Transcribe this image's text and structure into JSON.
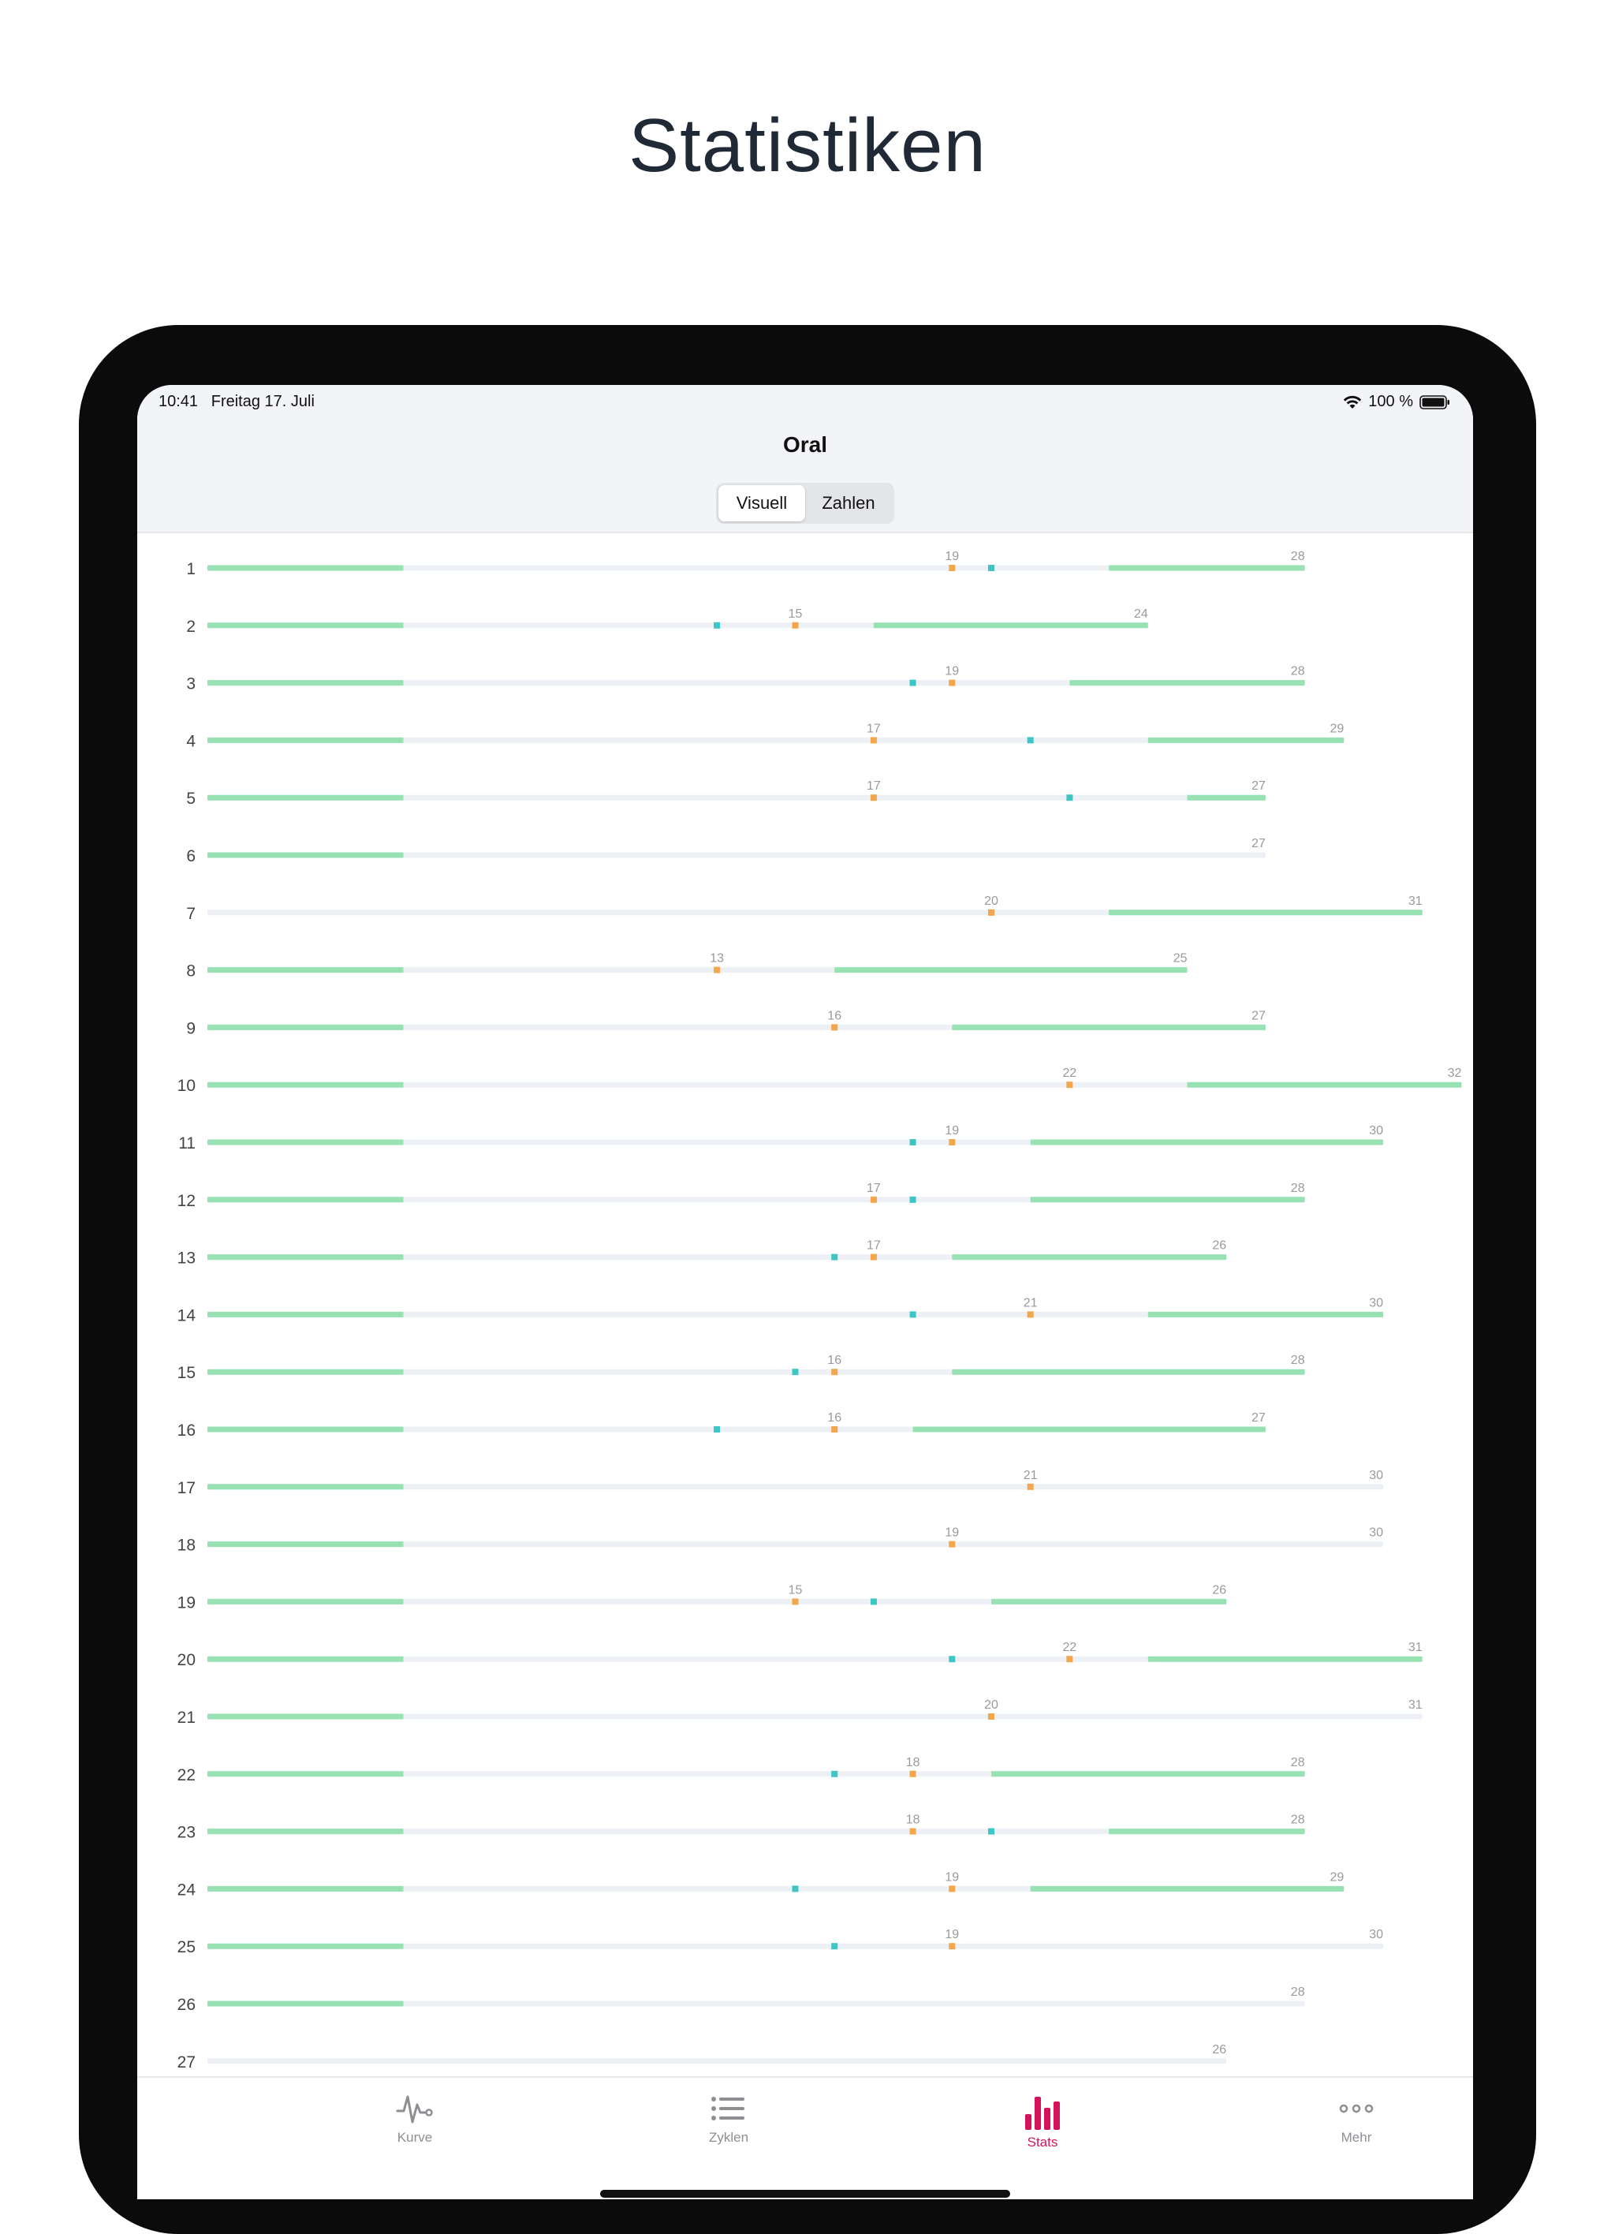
{
  "headline": "Statistiken",
  "status_bar": {
    "time": "10:41",
    "date": "Freitag 17. Juli",
    "battery": "100 %"
  },
  "nav": {
    "title": "Oral"
  },
  "segmented": {
    "options": [
      "Visuell",
      "Zahlen"
    ],
    "selected": "Visuell"
  },
  "tabs": [
    {
      "label": "Kurve",
      "icon": "pulse-icon",
      "active": false
    },
    {
      "label": "Zyklen",
      "icon": "list-icon",
      "active": false
    },
    {
      "label": "Stats",
      "icon": "bar-chart-icon",
      "active": true
    },
    {
      "label": "Mehr",
      "icon": "more-icon",
      "active": false
    }
  ],
  "colors": {
    "green": "#97e1b3",
    "track": "#edf0f4",
    "orange": "#f3a64b",
    "teal": "#3ec6c6",
    "tab_active": "#d4145a",
    "tab_inactive": "#8e8e93"
  },
  "chart_data": {
    "type": "table",
    "x_unit": "cycle day",
    "x_max": 32,
    "columns": [
      "cycle",
      "length",
      "ovulation_day",
      "mark_day",
      "bleeding_days",
      "fertile_start"
    ],
    "rows": [
      {
        "cycle": 1,
        "length": 28,
        "ovulation_day": 19,
        "mark_day": 20,
        "bleeding_days": 5,
        "fertile_start": 23
      },
      {
        "cycle": 2,
        "length": 24,
        "ovulation_day": 15,
        "mark_day": 13,
        "bleeding_days": 5,
        "fertile_start": 17
      },
      {
        "cycle": 3,
        "length": 28,
        "ovulation_day": 19,
        "mark_day": 18,
        "bleeding_days": 5,
        "fertile_start": 22
      },
      {
        "cycle": 4,
        "length": 29,
        "ovulation_day": 17,
        "mark_day": 21,
        "bleeding_days": 5,
        "fertile_start": 24
      },
      {
        "cycle": 5,
        "length": 27,
        "ovulation_day": 17,
        "mark_day": 22,
        "bleeding_days": 5,
        "fertile_start": 25
      },
      {
        "cycle": 6,
        "length": 27,
        "ovulation_day": null,
        "mark_day": null,
        "bleeding_days": 5,
        "fertile_start": null
      },
      {
        "cycle": 7,
        "length": 31,
        "ovulation_day": 20,
        "mark_day": null,
        "bleeding_days": 0,
        "fertile_start": 23
      },
      {
        "cycle": 8,
        "length": 25,
        "ovulation_day": 13,
        "mark_day": null,
        "bleeding_days": 5,
        "fertile_start": 16
      },
      {
        "cycle": 9,
        "length": 27,
        "ovulation_day": 16,
        "mark_day": null,
        "bleeding_days": 5,
        "fertile_start": 19
      },
      {
        "cycle": 10,
        "length": 32,
        "ovulation_day": 22,
        "mark_day": null,
        "bleeding_days": 5,
        "fertile_start": 25
      },
      {
        "cycle": 11,
        "length": 30,
        "ovulation_day": 19,
        "mark_day": 18,
        "bleeding_days": 5,
        "fertile_start": 21
      },
      {
        "cycle": 12,
        "length": 28,
        "ovulation_day": 17,
        "mark_day": 18,
        "bleeding_days": 5,
        "fertile_start": 21
      },
      {
        "cycle": 13,
        "length": 26,
        "ovulation_day": 17,
        "mark_day": 16,
        "bleeding_days": 5,
        "fertile_start": 19
      },
      {
        "cycle": 14,
        "length": 30,
        "ovulation_day": 21,
        "mark_day": 18,
        "bleeding_days": 5,
        "fertile_start": 24
      },
      {
        "cycle": 15,
        "length": 28,
        "ovulation_day": 16,
        "mark_day": 15,
        "bleeding_days": 5,
        "fertile_start": 19
      },
      {
        "cycle": 16,
        "length": 27,
        "ovulation_day": 16,
        "mark_day": 13,
        "bleeding_days": 5,
        "fertile_start": 18
      },
      {
        "cycle": 17,
        "length": 30,
        "ovulation_day": 21,
        "mark_day": null,
        "bleeding_days": 5,
        "fertile_start": null
      },
      {
        "cycle": 18,
        "length": 30,
        "ovulation_day": 19,
        "mark_day": null,
        "bleeding_days": 5,
        "fertile_start": null
      },
      {
        "cycle": 19,
        "length": 26,
        "ovulation_day": 15,
        "mark_day": 17,
        "bleeding_days": 5,
        "fertile_start": 20
      },
      {
        "cycle": 20,
        "length": 31,
        "ovulation_day": 22,
        "mark_day": 19,
        "bleeding_days": 5,
        "fertile_start": 24
      },
      {
        "cycle": 21,
        "length": 31,
        "ovulation_day": 20,
        "mark_day": null,
        "bleeding_days": 5,
        "fertile_start": null
      },
      {
        "cycle": 22,
        "length": 28,
        "ovulation_day": 18,
        "mark_day": 16,
        "bleeding_days": 5,
        "fertile_start": 20
      },
      {
        "cycle": 23,
        "length": 28,
        "ovulation_day": 18,
        "mark_day": 20,
        "bleeding_days": 5,
        "fertile_start": 23
      },
      {
        "cycle": 24,
        "length": 29,
        "ovulation_day": 19,
        "mark_day": 15,
        "bleeding_days": 5,
        "fertile_start": 21
      },
      {
        "cycle": 25,
        "length": 30,
        "ovulation_day": 19,
        "mark_day": 16,
        "bleeding_days": 5,
        "fertile_start": null
      },
      {
        "cycle": 26,
        "length": 28,
        "ovulation_day": null,
        "mark_day": null,
        "bleeding_days": 5,
        "fertile_start": null
      },
      {
        "cycle": 27,
        "length": 26,
        "ovulation_day": null,
        "mark_day": null,
        "bleeding_days": 0,
        "fertile_start": null
      }
    ]
  }
}
